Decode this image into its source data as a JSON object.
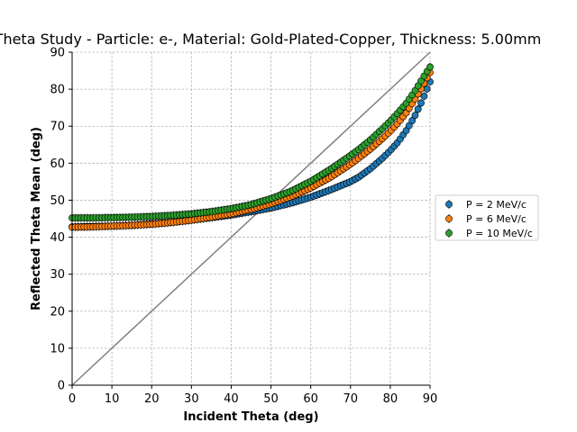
{
  "chart_data": {
    "type": "scatter",
    "title": "Theta Study - Particle: e-, Material: Gold-Plated-Copper, Thickness: 5.00mm",
    "xlabel": "Incident Theta (deg)",
    "ylabel": "Reflected Theta Mean (deg)",
    "xlim": [
      0,
      90
    ],
    "ylim": [
      0,
      90
    ],
    "xticks": [
      0,
      10,
      20,
      30,
      40,
      50,
      60,
      70,
      80,
      90
    ],
    "yticks": [
      0,
      10,
      20,
      30,
      40,
      50,
      60,
      70,
      80,
      90
    ],
    "grid": true,
    "legend_position": "right",
    "reference_line": {
      "x": [
        0,
        90
      ],
      "y": [
        0,
        90
      ],
      "color": "#808080"
    },
    "series": [
      {
        "name": "P = 2 MeV/c",
        "color": "#1f77b4",
        "x": [
          0,
          5,
          10,
          15,
          20,
          25,
          30,
          35,
          40,
          45,
          50,
          55,
          60,
          65,
          70,
          72,
          75,
          78,
          80,
          82,
          84,
          86,
          87,
          88,
          89,
          90
        ],
        "y": [
          42.8,
          42.9,
          43.0,
          43.2,
          43.6,
          44.0,
          44.6,
          45.3,
          46.0,
          46.9,
          47.9,
          49.2,
          50.8,
          52.8,
          55.0,
          56.2,
          58.5,
          61.3,
          63.4,
          65.8,
          68.8,
          72.4,
          74.6,
          76.8,
          79.4,
          82.0
        ]
      },
      {
        "name": "P = 6 MeV/c",
        "color": "#ff7f0e",
        "x": [
          0,
          5,
          10,
          15,
          20,
          25,
          30,
          35,
          40,
          45,
          50,
          55,
          60,
          65,
          70,
          72,
          75,
          78,
          80,
          82,
          84,
          86,
          87,
          88,
          89,
          90
        ],
        "y": [
          42.7,
          42.8,
          43.0,
          43.2,
          43.5,
          44.0,
          44.6,
          45.4,
          46.3,
          47.5,
          49.0,
          50.9,
          53.3,
          56.2,
          59.7,
          61.3,
          63.8,
          66.6,
          68.6,
          70.9,
          73.6,
          76.9,
          78.7,
          80.6,
          82.6,
          84.5
        ]
      },
      {
        "name": "P = 10 MeV/c",
        "color": "#2ca02c",
        "x": [
          0,
          5,
          10,
          15,
          20,
          25,
          30,
          35,
          40,
          45,
          50,
          55,
          60,
          65,
          70,
          72,
          75,
          78,
          80,
          82,
          84,
          86,
          87,
          88,
          89,
          90
        ],
        "y": [
          45.2,
          45.2,
          45.3,
          45.4,
          45.6,
          45.9,
          46.3,
          46.9,
          47.7,
          48.8,
          50.4,
          52.4,
          55.1,
          58.4,
          62.1,
          63.7,
          66.3,
          69.3,
          71.4,
          73.7,
          76.2,
          79.2,
          80.9,
          82.7,
          84.4,
          86.0
        ]
      }
    ]
  }
}
